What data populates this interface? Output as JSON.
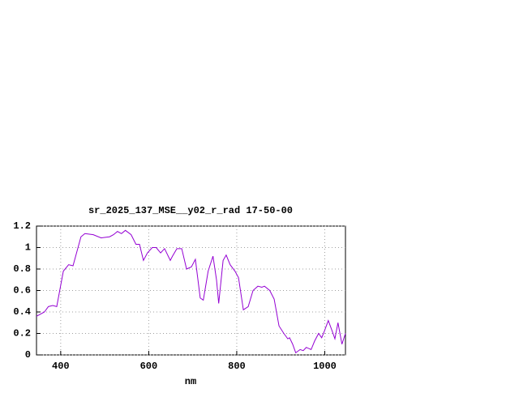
{
  "chart_data": {
    "type": "line",
    "title": "sr_2025_137_MSE__y02_r_rad 17-50-00",
    "x_label": "nm",
    "x": [
      345,
      363,
      372,
      382,
      391,
      406,
      418,
      428,
      446,
      455,
      474,
      492,
      511,
      520,
      529,
      538,
      547,
      560,
      571,
      579,
      588,
      597,
      608,
      617,
      627,
      636,
      649,
      654,
      664,
      675,
      686,
      697,
      706,
      717,
      724,
      735,
      746,
      754,
      759,
      769,
      776,
      785,
      796,
      804,
      815,
      826,
      837,
      848,
      857,
      863,
      875,
      885,
      896,
      907,
      916,
      920,
      927,
      934,
      944,
      951,
      958,
      969,
      977,
      986,
      993,
      999,
      1008,
      1017,
      1023,
      1030,
      1039,
      1047
    ],
    "series": [
      {
        "name": "sr_2025_137_MSE__y02_r_rad",
        "color": "#9400d3",
        "values": [
          0.36,
          0.4,
          0.45,
          0.46,
          0.45,
          0.78,
          0.84,
          0.83,
          1.1,
          1.13,
          1.12,
          1.09,
          1.1,
          1.12,
          1.15,
          1.13,
          1.16,
          1.12,
          1.03,
          1.03,
          0.88,
          0.95,
          1.0,
          1.0,
          0.95,
          0.99,
          0.88,
          0.92,
          0.99,
          0.99,
          0.8,
          0.82,
          0.89,
          0.53,
          0.51,
          0.78,
          0.92,
          0.7,
          0.48,
          0.88,
          0.93,
          0.84,
          0.78,
          0.72,
          0.42,
          0.45,
          0.6,
          0.64,
          0.63,
          0.64,
          0.6,
          0.52,
          0.27,
          0.2,
          0.15,
          0.16,
          0.1,
          0.02,
          0.05,
          0.04,
          0.07,
          0.05,
          0.13,
          0.2,
          0.16,
          0.22,
          0.32,
          0.22,
          0.15,
          0.3,
          0.1,
          0.2
        ]
      }
    ],
    "xlim": [
      345,
      1047
    ],
    "xticks": [
      400,
      600,
      800,
      1000
    ],
    "ylim": [
      0,
      1.2
    ],
    "yticks": [
      0,
      0.2,
      0.4,
      0.6,
      0.8,
      1,
      1.2
    ],
    "grid": true
  }
}
